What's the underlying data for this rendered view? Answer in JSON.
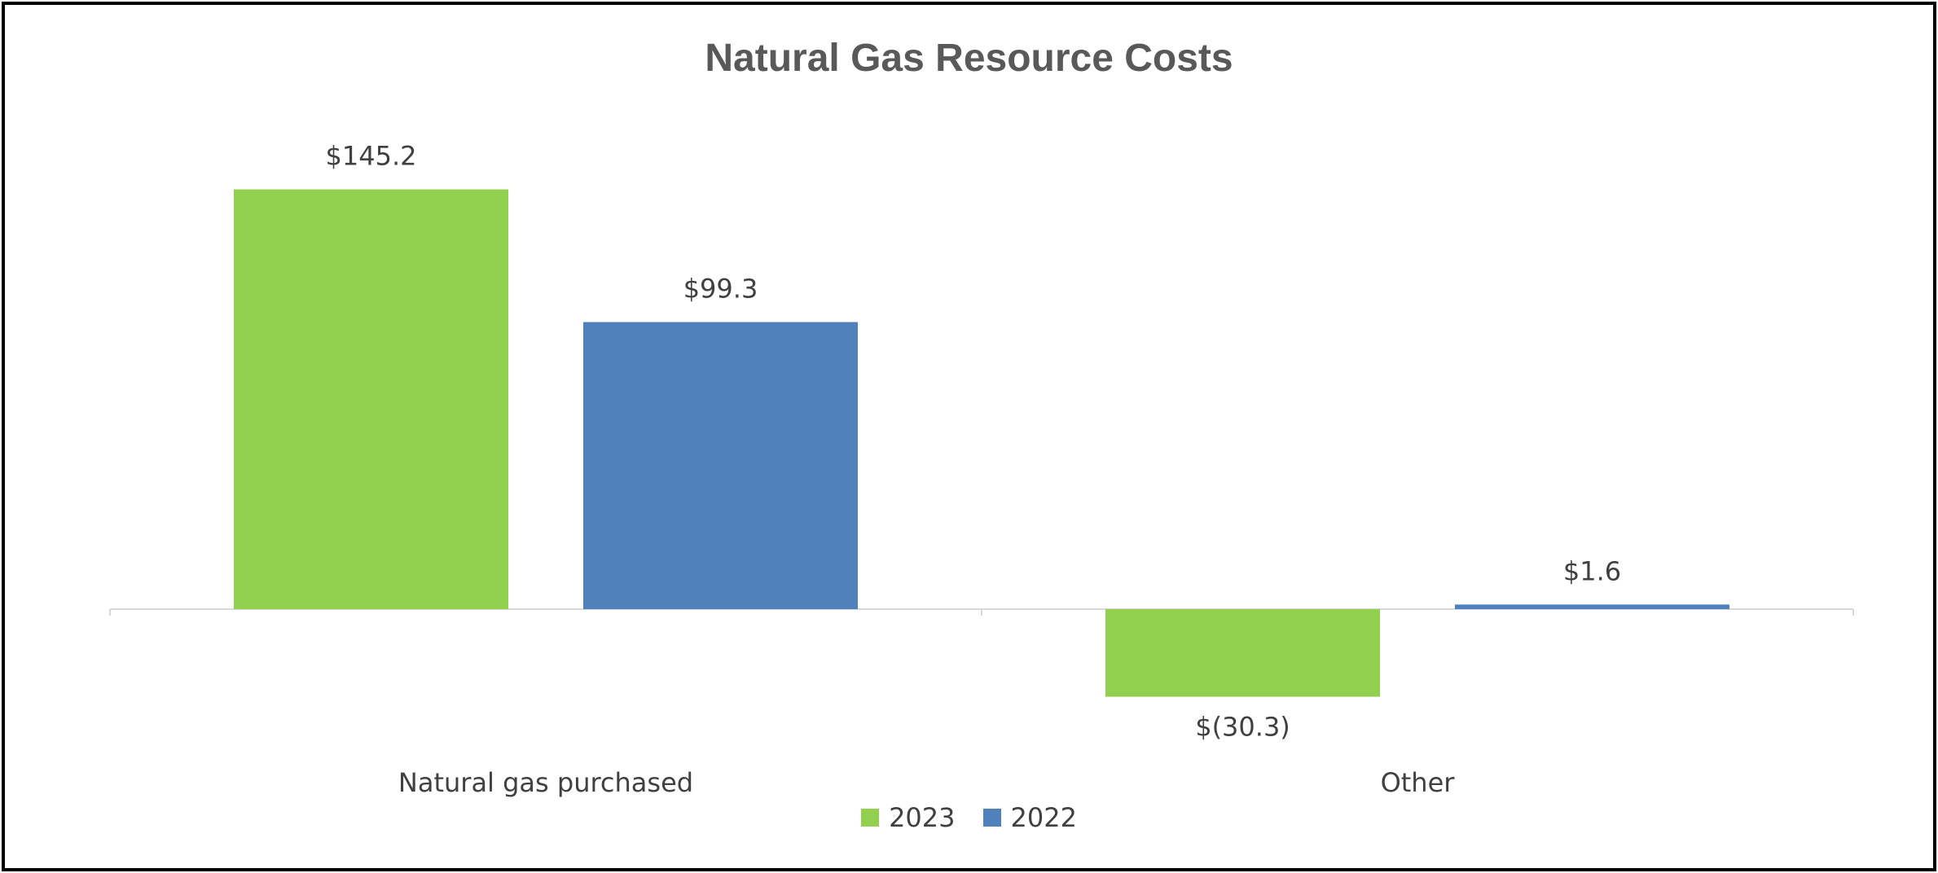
{
  "chart_data": {
    "type": "bar",
    "title": "Natural Gas Resource Costs",
    "categories": [
      "Natural gas purchased",
      "Other"
    ],
    "series": [
      {
        "name": "2023",
        "color": "#92D050",
        "values": [
          145.2,
          -30.3
        ],
        "labels": [
          "$145.2",
          "$(30.3)"
        ]
      },
      {
        "name": "2022",
        "color": "#4F81BD",
        "values": [
          99.3,
          1.6
        ],
        "labels": [
          "$99.3",
          "$1.6"
        ]
      }
    ],
    "xlabel": "",
    "ylabel": "",
    "ylim": [
      -40,
      160
    ],
    "grid": false,
    "legend_position": "bottom"
  }
}
